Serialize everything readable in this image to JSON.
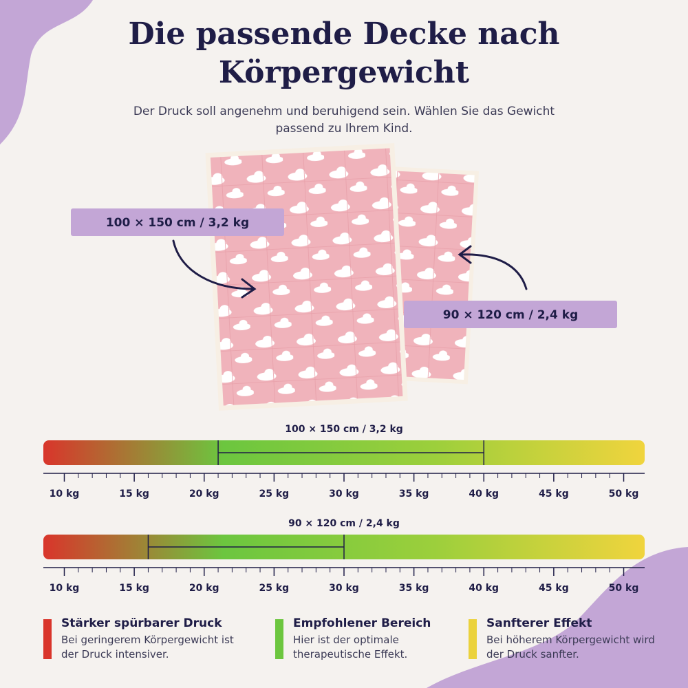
{
  "header": {
    "title": "Die passende Decke nach Körpergewicht",
    "subtitle": "Der Druck soll angenehm und beruhigend sein. Wählen Sie das Gewicht passend zu Ihrem Kind."
  },
  "blankets": [
    {
      "label": "100 × 150 cm / 3,2 kg"
    },
    {
      "label": "90 × 120 cm / 2,4 kg"
    }
  ],
  "scales": [
    {
      "label": "100 × 150 cm / 3,2 kg",
      "range": [
        21,
        40
      ],
      "xlim": [
        8.5,
        51.5
      ],
      "xticks": [
        {
          "value": 10,
          "label": "10 kg"
        },
        {
          "value": 15,
          "label": "15 kg"
        },
        {
          "value": 20,
          "label": "20 kg"
        },
        {
          "value": 25,
          "label": "25 kg"
        },
        {
          "value": 30,
          "label": "30 kg"
        },
        {
          "value": 35,
          "label": "35 kg"
        },
        {
          "value": 40,
          "label": "40 kg"
        },
        {
          "value": 45,
          "label": "45 kg"
        },
        {
          "value": 50,
          "label": "50 kg"
        }
      ]
    },
    {
      "label": "90 × 120 cm / 2,4 kg",
      "range": [
        16,
        30
      ],
      "xlim": [
        8.5,
        51.5
      ],
      "xticks": [
        {
          "value": 10,
          "label": "10 kg"
        },
        {
          "value": 15,
          "label": "15 kg"
        },
        {
          "value": 20,
          "label": "20 kg"
        },
        {
          "value": 25,
          "label": "25 kg"
        },
        {
          "value": 30,
          "label": "30 kg"
        },
        {
          "value": 35,
          "label": "35 kg"
        },
        {
          "value": 40,
          "label": "40 kg"
        },
        {
          "value": 45,
          "label": "45 kg"
        },
        {
          "value": 50,
          "label": "50 kg"
        }
      ]
    }
  ],
  "legend": [
    {
      "title": "Stärker spürbarer Druck",
      "text": "Bei geringerem Körpergewicht ist der Druck intensiver.",
      "color": "#d9352b"
    },
    {
      "title": "Empfohlener Bereich",
      "text": "Hier ist der optimale therapeutische Effekt.",
      "color": "#6cc63f"
    },
    {
      "title": "Sanfterer Effekt",
      "text": "Bei höherem Körpergewicht wird der Druck sanfter.",
      "color": "#ebd23c"
    }
  ]
}
